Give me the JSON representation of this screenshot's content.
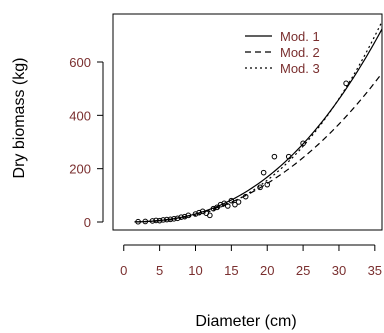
{
  "chart_data": {
    "type": "scatter",
    "title": "",
    "xlabel": "Diameter (cm)",
    "ylabel": "Dry biomass (kg)",
    "xlim": [
      -1.5,
      36
    ],
    "ylim": [
      -30,
      780
    ],
    "x_ticks": [
      0,
      5,
      10,
      15,
      20,
      25,
      30,
      35
    ],
    "y_ticks": [
      0,
      200,
      400,
      600
    ],
    "grid": false,
    "legend_position": "top-right",
    "colors": {
      "text": "#7a2f2f",
      "ink": "#000000",
      "background": "#ffffff"
    },
    "points": [
      [
        2,
        1
      ],
      [
        3,
        2
      ],
      [
        4,
        4
      ],
      [
        4.5,
        6
      ],
      [
        5,
        5
      ],
      [
        5.5,
        8
      ],
      [
        6,
        9
      ],
      [
        6.5,
        10
      ],
      [
        7,
        12
      ],
      [
        7.5,
        14
      ],
      [
        8,
        18
      ],
      [
        8.5,
        20
      ],
      [
        9,
        25
      ],
      [
        10,
        30
      ],
      [
        10.5,
        35
      ],
      [
        11,
        40
      ],
      [
        11.5,
        33
      ],
      [
        12,
        25
      ],
      [
        12.5,
        50
      ],
      [
        13,
        55
      ],
      [
        13.5,
        65
      ],
      [
        14,
        70
      ],
      [
        14.5,
        60
      ],
      [
        15,
        80
      ],
      [
        15.5,
        65
      ],
      [
        16,
        75
      ],
      [
        17,
        95
      ],
      [
        19,
        130
      ],
      [
        19.5,
        185
      ],
      [
        20,
        140
      ],
      [
        21,
        245
      ],
      [
        23,
        245
      ],
      [
        25,
        295
      ],
      [
        31,
        520
      ]
    ],
    "series": [
      {
        "name": "Mod. 1",
        "line_style": "solid",
        "coefficients": {
          "a": 0.1,
          "b": 2.48
        }
      },
      {
        "name": "Mod. 2",
        "line_style": "dashed",
        "coefficients": {
          "a": 0.147,
          "b": 2.3
        }
      },
      {
        "name": "Mod. 3",
        "line_style": "dotted",
        "coefficients": {
          "a": 0.0526,
          "b": 2.67
        }
      }
    ],
    "curve_range": [
      1.5,
      36
    ]
  }
}
